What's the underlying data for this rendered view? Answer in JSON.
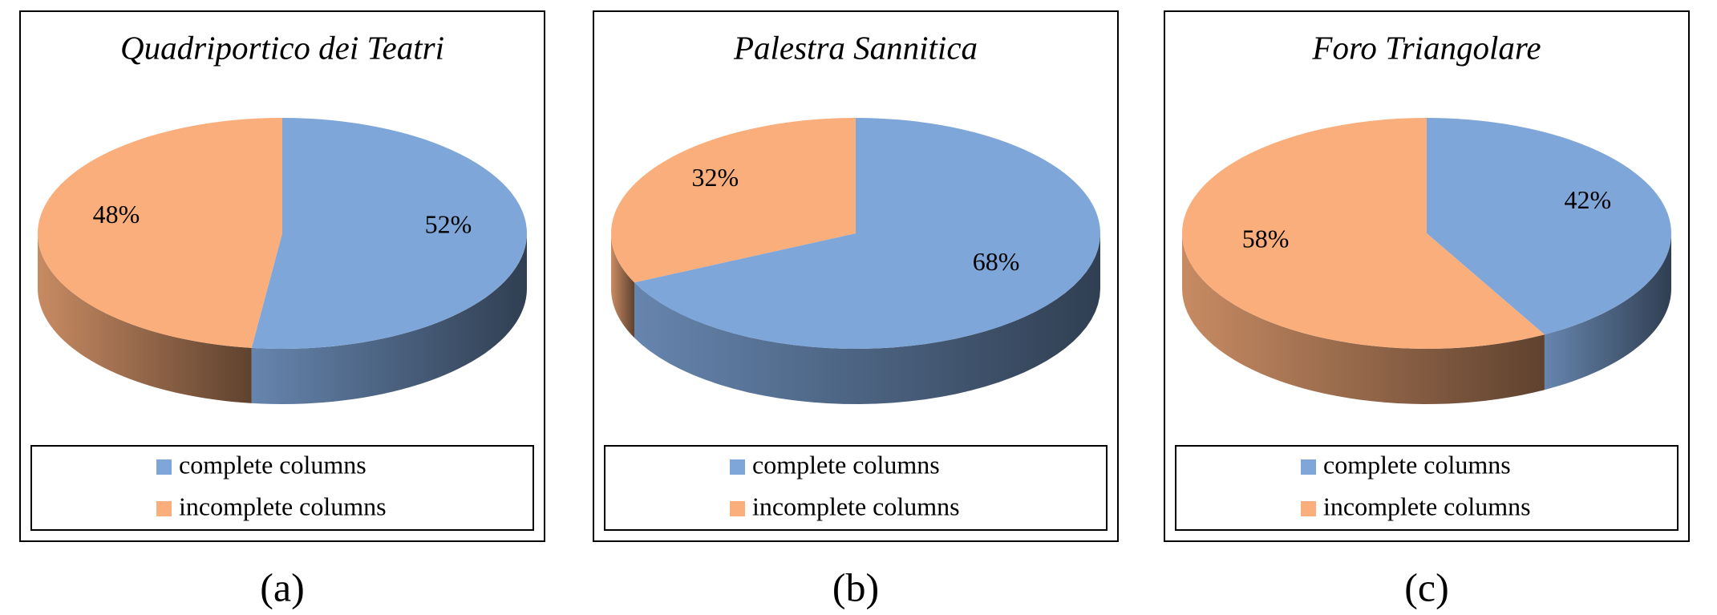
{
  "chart_data": [
    {
      "type": "pie",
      "title": "Quadriportico dei Teatri",
      "categories": [
        "complete columns",
        "incomplete columns"
      ],
      "values": [
        52,
        48
      ],
      "value_labels": [
        "52%",
        "48%"
      ],
      "colors": [
        "#7fa6d9",
        "#f9ae7c"
      ],
      "panel_label": "(a)"
    },
    {
      "type": "pie",
      "title": "Palestra Sannitica",
      "categories": [
        "complete columns",
        "incomplete columns"
      ],
      "values": [
        68,
        32
      ],
      "value_labels": [
        "68%",
        "32%"
      ],
      "colors": [
        "#7fa6d9",
        "#f9ae7c"
      ],
      "panel_label": "(b)"
    },
    {
      "type": "pie",
      "title": "Foro Triangolare",
      "categories": [
        "complete columns",
        "incomplete columns"
      ],
      "values": [
        42,
        58
      ],
      "value_labels": [
        "42%",
        "58%"
      ],
      "colors": [
        "#7fa6d9",
        "#f9ae7c"
      ],
      "panel_label": "(c)"
    }
  ]
}
